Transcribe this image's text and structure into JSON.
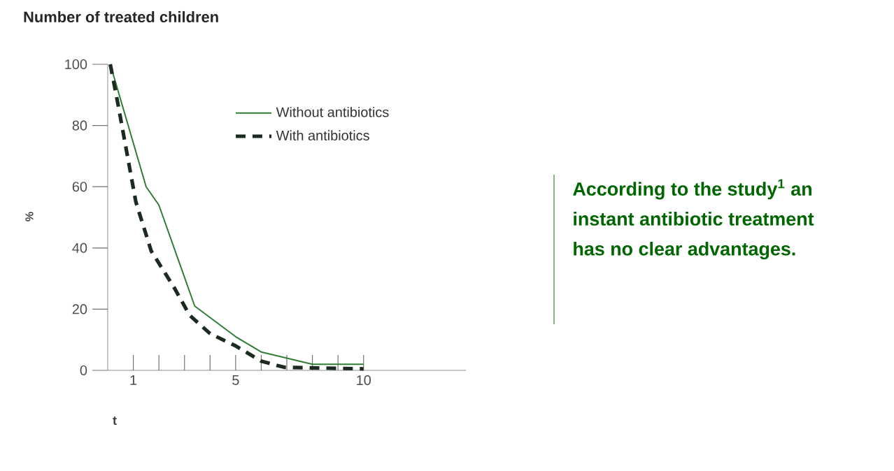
{
  "chart_data": {
    "type": "line",
    "title": "Number of treated children",
    "xlabel": "t",
    "ylabel": "%",
    "xlim": [
      0,
      14
    ],
    "ylim": [
      0,
      100
    ],
    "xticks": [
      1,
      {
        "value": 2,
        "label": null
      },
      {
        "value": 3,
        "label": null
      },
      {
        "value": 4,
        "label": null
      },
      5,
      {
        "value": 6,
        "label": null
      },
      {
        "value": 7,
        "label": null
      },
      {
        "value": 8,
        "label": null
      },
      {
        "value": 9,
        "label": null
      },
      10
    ],
    "yticks": [
      0,
      20,
      40,
      60,
      80,
      100
    ],
    "legend": "top right",
    "grid": false,
    "marker": "none",
    "annotations": [
      "According to the study$^{1}$ an instant antibiotic treatment has no clear advantages."
    ],
    "series": [
      {
        "name": "Without antibiotics",
        "color": "#2e7d32",
        "line_style": "solid",
        "x": [
          0.1,
          1.5,
          2,
          3.4,
          5,
          6,
          8,
          10
        ],
        "values": [
          100,
          60,
          54,
          21,
          11,
          6,
          2,
          2
        ]
      },
      {
        "name": "With antibiotics",
        "color": "#1c2b20",
        "line_style": "dashed",
        "x": [
          0.1,
          0.4,
          1.1,
          1.7,
          2.6,
          3.2,
          4,
          5,
          6,
          6.9,
          10
        ],
        "values": [
          100,
          87,
          55,
          39,
          27,
          18,
          12,
          8,
          3,
          1,
          0.5
        ]
      }
    ]
  }
}
